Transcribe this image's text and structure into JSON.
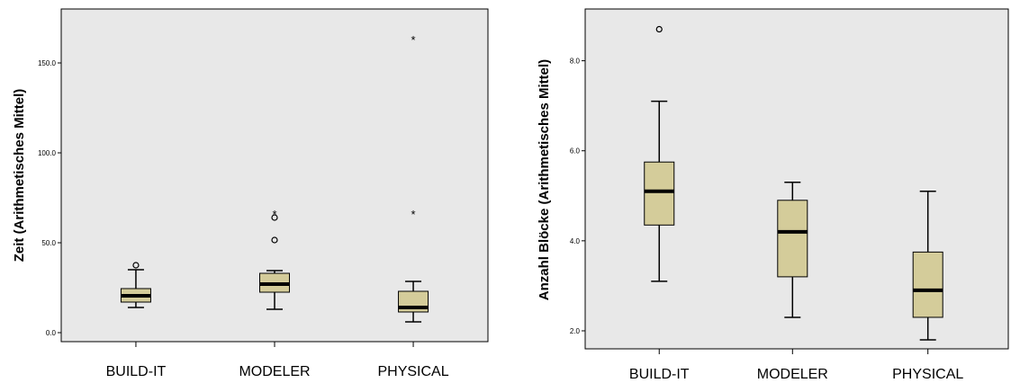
{
  "colors": {
    "plot_background": "#e8e8e8",
    "box_fill": "#d4cc9a",
    "box_stroke": "#000000",
    "median": "#000000"
  },
  "chart_data": [
    {
      "type": "boxplot",
      "ylabel": "Zeit (Arithmetisches Mittel)",
      "xlabel": "",
      "ylim": [
        -5,
        180
      ],
      "yticks": [
        0,
        50,
        100,
        150
      ],
      "ytick_labels": [
        "0.0",
        "50.0",
        "100.0",
        "150.0"
      ],
      "grid": false,
      "categories": [
        "BUILD-IT",
        "MODELER",
        "PHYSICAL"
      ],
      "boxes": [
        {
          "category": "BUILD-IT",
          "whisker_low": 14,
          "q1": 17,
          "median": 20.5,
          "q3": 24.5,
          "whisker_high": 35,
          "outliers": [
            {
              "value": 37.5,
              "marker": "circle"
            }
          ]
        },
        {
          "category": "MODELER",
          "whisker_low": 13,
          "q1": 22.5,
          "median": 27,
          "q3": 33,
          "whisker_high": 34.5,
          "outliers": [
            {
              "value": 51.5,
              "marker": "circle"
            },
            {
              "value": 64,
              "marker": "circle"
            },
            {
              "value": 66,
              "marker": "star"
            }
          ]
        },
        {
          "category": "PHYSICAL",
          "whisker_low": 6,
          "q1": 11.5,
          "median": 14,
          "q3": 23,
          "whisker_high": 28.5,
          "outliers": [
            {
              "value": 66,
              "marker": "star"
            },
            {
              "value": 163,
              "marker": "star"
            }
          ]
        }
      ]
    },
    {
      "type": "boxplot",
      "ylabel": "Anzahl Blöcke (Arithmetisches Mittel)",
      "xlabel": "",
      "ylim": [
        1.6,
        9.15
      ],
      "yticks": [
        2,
        4,
        6,
        8
      ],
      "ytick_labels": [
        "2.0",
        "4.0",
        "6.0",
        "8.0"
      ],
      "grid": false,
      "categories": [
        "BUILD-IT",
        "MODELER",
        "PHYSICAL"
      ],
      "boxes": [
        {
          "category": "BUILD-IT",
          "whisker_low": 3.1,
          "q1": 4.35,
          "median": 5.1,
          "q3": 5.75,
          "whisker_high": 7.1,
          "outliers": [
            {
              "value": 8.7,
              "marker": "circle"
            }
          ]
        },
        {
          "category": "MODELER",
          "whisker_low": 2.3,
          "q1": 3.2,
          "median": 4.2,
          "q3": 4.9,
          "whisker_high": 5.3,
          "outliers": []
        },
        {
          "category": "PHYSICAL",
          "whisker_low": 1.8,
          "q1": 2.3,
          "median": 2.9,
          "q3": 3.75,
          "whisker_high": 5.1,
          "outliers": []
        }
      ]
    }
  ]
}
